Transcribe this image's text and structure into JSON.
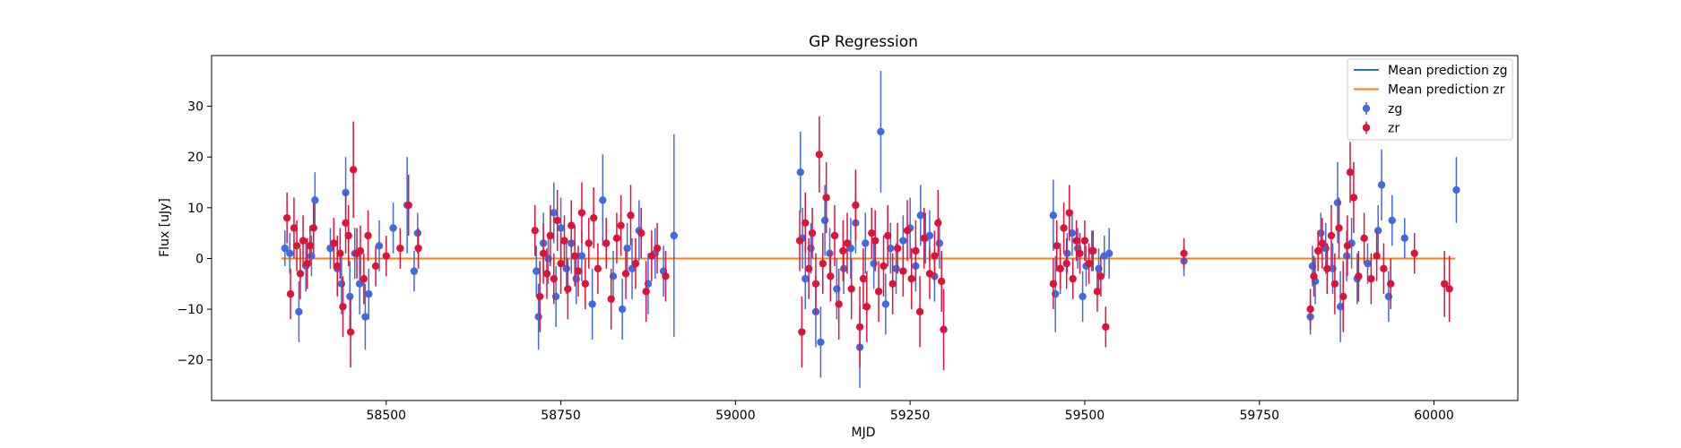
{
  "chart_data": {
    "type": "scatter",
    "title": "GP Regression",
    "xlabel": "MJD",
    "ylabel": "Flux [uJy]",
    "xlim": [
      58250,
      60120
    ],
    "ylim": [
      -28,
      40
    ],
    "xticks": [
      58500,
      58750,
      59000,
      59250,
      59500,
      59750,
      60000
    ],
    "yticks": [
      -20,
      -10,
      0,
      10,
      20,
      30
    ],
    "grid": false,
    "legend_position": "top-right",
    "lines": [
      {
        "name": "Mean prediction zg",
        "color": "#1f77b4",
        "x": [
          58350,
          60030
        ],
        "y": [
          0,
          0
        ]
      },
      {
        "name": "Mean prediction zr",
        "color": "#ff7f0e",
        "x": [
          58350,
          60030
        ],
        "y": [
          0,
          0
        ]
      }
    ],
    "series": [
      {
        "name": "zg",
        "color": "#4169e1",
        "points": [
          [
            58355,
            2.0,
            3.5
          ],
          [
            58362,
            1.0,
            4.0
          ],
          [
            58375,
            -10.5,
            6.0
          ],
          [
            58385,
            -1.5,
            5.0
          ],
          [
            58393,
            0.5,
            4.0
          ],
          [
            58398,
            11.5,
            5.5
          ],
          [
            58420,
            2.0,
            4.0
          ],
          [
            58430,
            -2.0,
            5.0
          ],
          [
            58436,
            -5.0,
            6.0
          ],
          [
            58442,
            13.0,
            7.0
          ],
          [
            58448,
            -7.5,
            7.0
          ],
          [
            58455,
            1.0,
            5.0
          ],
          [
            58462,
            -5.0,
            6.0
          ],
          [
            58470,
            -11.5,
            6.5
          ],
          [
            58475,
            -7.0,
            5.0
          ],
          [
            58490,
            2.5,
            5.0
          ],
          [
            58510,
            6.0,
            5.0
          ],
          [
            58530,
            10.5,
            9.5
          ],
          [
            58540,
            -2.5,
            4.0
          ],
          [
            58545,
            5.0,
            4.0
          ],
          [
            58715,
            -2.5,
            5.0
          ],
          [
            58718,
            -11.5,
            6.5
          ],
          [
            58725,
            3.0,
            6.0
          ],
          [
            58732,
            0.0,
            5.0
          ],
          [
            58740,
            9.0,
            6.0
          ],
          [
            58743,
            -7.5,
            6.0
          ],
          [
            58750,
            6.0,
            6.0
          ],
          [
            58758,
            -2.0,
            5.0
          ],
          [
            58765,
            3.0,
            6.0
          ],
          [
            58772,
            -4.0,
            5.0
          ],
          [
            58780,
            0.5,
            5.0
          ],
          [
            58795,
            -9.0,
            7.0
          ],
          [
            58810,
            11.5,
            9.0
          ],
          [
            58825,
            -3.5,
            5.0
          ],
          [
            58838,
            -10.0,
            6.0
          ],
          [
            58845,
            2.0,
            5.0
          ],
          [
            58852,
            -2.0,
            6.0
          ],
          [
            58862,
            5.5,
            6.0
          ],
          [
            58875,
            -5.0,
            6.0
          ],
          [
            58885,
            1.0,
            5.0
          ],
          [
            58897,
            -2.5,
            5.0
          ],
          [
            58912,
            4.5,
            20.0
          ],
          [
            59093,
            17.0,
            8.0
          ],
          [
            59096,
            4.0,
            6.0
          ],
          [
            59100,
            -4.0,
            6.0
          ],
          [
            59108,
            2.0,
            5.0
          ],
          [
            59115,
            -10.5,
            7.0
          ],
          [
            59122,
            -16.5,
            7.0
          ],
          [
            59128,
            7.5,
            7.0
          ],
          [
            59135,
            1.0,
            5.0
          ],
          [
            59145,
            -6.0,
            6.0
          ],
          [
            59155,
            -2.0,
            5.0
          ],
          [
            59165,
            2.0,
            6.0
          ],
          [
            59172,
            7.0,
            6.0
          ],
          [
            59178,
            -17.5,
            8.0
          ],
          [
            59186,
            3.0,
            6.0
          ],
          [
            59198,
            -1.0,
            5.0
          ],
          [
            59208,
            25.0,
            12.0
          ],
          [
            59215,
            -9.0,
            6.0
          ],
          [
            59222,
            2.0,
            5.0
          ],
          [
            59230,
            -2.0,
            5.0
          ],
          [
            59240,
            3.5,
            5.0
          ],
          [
            59250,
            6.0,
            6.0
          ],
          [
            59258,
            -1.5,
            5.0
          ],
          [
            59265,
            8.5,
            6.0
          ],
          [
            59272,
            4.0,
            5.0
          ],
          [
            59278,
            4.5,
            5.0
          ],
          [
            59285,
            -3.5,
            5.0
          ],
          [
            59292,
            3.0,
            5.0
          ],
          [
            59455,
            8.5,
            7.0
          ],
          [
            59458,
            -7.0,
            7.5
          ],
          [
            59465,
            -2.0,
            5.0
          ],
          [
            59475,
            1.0,
            4.0
          ],
          [
            59482,
            5.0,
            4.5
          ],
          [
            59490,
            2.0,
            4.0
          ],
          [
            59497,
            -7.5,
            5.0
          ],
          [
            59502,
            -1.5,
            4.0
          ],
          [
            59510,
            1.5,
            4.0
          ],
          [
            59520,
            -2.0,
            4.0
          ],
          [
            59528,
            0.5,
            4.0
          ],
          [
            59535,
            1.0,
            5.0
          ],
          [
            59642,
            -0.5,
            3.0
          ],
          [
            59823,
            -11.5,
            3.5
          ],
          [
            59826,
            -1.5,
            4.0
          ],
          [
            59830,
            -4.5,
            4.5
          ],
          [
            59838,
            5.0,
            4.0
          ],
          [
            59845,
            2.0,
            5.0
          ],
          [
            59855,
            -2.0,
            5.0
          ],
          [
            59862,
            11.0,
            8.0
          ],
          [
            59866,
            -9.5,
            7.0
          ],
          [
            59875,
            0.5,
            5.0
          ],
          [
            59882,
            3.0,
            5.0
          ],
          [
            59890,
            -4.0,
            5.0
          ],
          [
            59905,
            -1.0,
            4.0
          ],
          [
            59920,
            5.5,
            5.0
          ],
          [
            59925,
            14.5,
            7.0
          ],
          [
            59935,
            -7.5,
            5.0
          ],
          [
            59940,
            7.5,
            5.0
          ],
          [
            59958,
            4.0,
            4.0
          ],
          [
            60032,
            13.5,
            6.5
          ]
        ]
      },
      {
        "name": "zr",
        "color": "#dc143c",
        "points": [
          [
            58358,
            8.0,
            5.0
          ],
          [
            58363,
            -7.0,
            5.0
          ],
          [
            58368,
            6.0,
            6.0
          ],
          [
            58372,
            2.5,
            5.0
          ],
          [
            58377,
            -3.0,
            5.0
          ],
          [
            58381,
            3.5,
            5.0
          ],
          [
            58387,
            -1.0,
            5.0
          ],
          [
            58391,
            2.5,
            4.0
          ],
          [
            58396,
            6.0,
            5.0
          ],
          [
            58425,
            3.0,
            5.0
          ],
          [
            58430,
            -1.5,
            6.0
          ],
          [
            58434,
            1.0,
            5.0
          ],
          [
            58438,
            -9.5,
            6.0
          ],
          [
            58442,
            7.0,
            6.0
          ],
          [
            58446,
            4.5,
            6.0
          ],
          [
            58449,
            -14.5,
            7.0
          ],
          [
            58453,
            17.5,
            9.5
          ],
          [
            58458,
            1.0,
            5.0
          ],
          [
            58463,
            1.5,
            5.0
          ],
          [
            58468,
            -4.0,
            5.0
          ],
          [
            58474,
            4.5,
            5.0
          ],
          [
            58485,
            -1.5,
            4.0
          ],
          [
            58500,
            0.5,
            4.0
          ],
          [
            58520,
            2.0,
            4.0
          ],
          [
            58532,
            10.5,
            6.0
          ],
          [
            58546,
            2.0,
            4.0
          ],
          [
            58713,
            5.5,
            5.0
          ],
          [
            58720,
            -7.5,
            7.0
          ],
          [
            58725,
            1.0,
            6.0
          ],
          [
            58730,
            -3.0,
            5.0
          ],
          [
            58735,
            4.5,
            6.0
          ],
          [
            58740,
            -4.0,
            5.0
          ],
          [
            58745,
            7.5,
            6.0
          ],
          [
            58750,
            -1.0,
            6.0
          ],
          [
            58755,
            3.5,
            5.0
          ],
          [
            58760,
            -6.0,
            6.0
          ],
          [
            58765,
            6.5,
            5.0
          ],
          [
            58770,
            0.5,
            6.0
          ],
          [
            58775,
            -2.5,
            5.0
          ],
          [
            58780,
            9.0,
            6.0
          ],
          [
            58785,
            -5.0,
            5.0
          ],
          [
            58790,
            3.0,
            5.0
          ],
          [
            58797,
            8.0,
            6.0
          ],
          [
            58803,
            -2.0,
            5.0
          ],
          [
            58815,
            3.0,
            5.0
          ],
          [
            58822,
            -8.0,
            6.0
          ],
          [
            58830,
            4.0,
            5.0
          ],
          [
            58836,
            6.5,
            6.0
          ],
          [
            58843,
            -3.0,
            5.0
          ],
          [
            58850,
            8.5,
            6.0
          ],
          [
            58857,
            -1.0,
            5.0
          ],
          [
            58865,
            5.0,
            5.0
          ],
          [
            58872,
            -6.5,
            6.0
          ],
          [
            58880,
            0.5,
            5.0
          ],
          [
            58888,
            2.0,
            5.0
          ],
          [
            58900,
            -3.5,
            5.0
          ],
          [
            59092,
            3.5,
            6.0
          ],
          [
            59095,
            -14.5,
            7.0
          ],
          [
            59100,
            7.0,
            6.0
          ],
          [
            59105,
            -2.0,
            6.0
          ],
          [
            59110,
            5.0,
            5.0
          ],
          [
            59115,
            -5.0,
            6.0
          ],
          [
            59120,
            20.5,
            7.5
          ],
          [
            59125,
            -1.0,
            6.0
          ],
          [
            59130,
            12.0,
            7.0
          ],
          [
            59136,
            -3.5,
            5.0
          ],
          [
            59142,
            4.5,
            6.0
          ],
          [
            59148,
            -9.0,
            7.0
          ],
          [
            59154,
            1.5,
            6.0
          ],
          [
            59160,
            3.0,
            6.0
          ],
          [
            59166,
            -6.0,
            6.0
          ],
          [
            59172,
            10.5,
            7.0
          ],
          [
            59178,
            -13.5,
            8.0
          ],
          [
            59183,
            -4.0,
            6.0
          ],
          [
            59188,
            -9.5,
            7.0
          ],
          [
            59195,
            5.0,
            5.0
          ],
          [
            59200,
            3.5,
            6.0
          ],
          [
            59205,
            -6.5,
            6.0
          ],
          [
            59212,
            -1.5,
            6.0
          ],
          [
            59218,
            4.5,
            6.0
          ],
          [
            59225,
            -5.0,
            6.0
          ],
          [
            59232,
            2.0,
            5.0
          ],
          [
            59240,
            -2.5,
            5.0
          ],
          [
            59246,
            5.5,
            6.0
          ],
          [
            59252,
            -4.0,
            6.0
          ],
          [
            59258,
            1.5,
            6.0
          ],
          [
            59264,
            -10.5,
            7.0
          ],
          [
            59270,
            4.0,
            6.0
          ],
          [
            59278,
            -3.0,
            5.0
          ],
          [
            59285,
            0.5,
            5.0
          ],
          [
            59290,
            7.0,
            6.5
          ],
          [
            59295,
            -4.5,
            6.0
          ],
          [
            59298,
            -14.0,
            8.0
          ],
          [
            59455,
            -5.0,
            5.0
          ],
          [
            59460,
            2.5,
            5.0
          ],
          [
            59465,
            -2.0,
            4.0
          ],
          [
            59470,
            6.0,
            5.0
          ],
          [
            59474,
            -1.0,
            5.0
          ],
          [
            59478,
            9.0,
            5.5
          ],
          [
            59483,
            -4.0,
            4.0
          ],
          [
            59488,
            3.5,
            4.0
          ],
          [
            59493,
            1.0,
            4.0
          ],
          [
            59500,
            3.5,
            4.0
          ],
          [
            59506,
            -1.0,
            4.0
          ],
          [
            59512,
            1.5,
            4.0
          ],
          [
            59518,
            -6.5,
            4.0
          ],
          [
            59523,
            -3.5,
            4.0
          ],
          [
            59530,
            -13.5,
            4.0
          ],
          [
            59642,
            1.0,
            3.0
          ],
          [
            59823,
            -10.0,
            4.0
          ],
          [
            59828,
            -3.5,
            4.0
          ],
          [
            59834,
            1.5,
            4.0
          ],
          [
            59840,
            3.0,
            5.0
          ],
          [
            59847,
            -2.0,
            5.0
          ],
          [
            59853,
            4.5,
            6.0
          ],
          [
            59858,
            -5.0,
            6.0
          ],
          [
            59864,
            6.0,
            6.0
          ],
          [
            59870,
            -7.5,
            7.0
          ],
          [
            59876,
            2.5,
            6.0
          ],
          [
            59880,
            17.0,
            6.0
          ],
          [
            59885,
            12.0,
            7.0
          ],
          [
            59892,
            -3.5,
            5.0
          ],
          [
            59900,
            4.0,
            5.0
          ],
          [
            59910,
            -4.0,
            5.0
          ],
          [
            59918,
            0.5,
            5.0
          ],
          [
            59928,
            -2.0,
            5.0
          ],
          [
            59938,
            -5.0,
            5.0
          ],
          [
            59972,
            1.0,
            4.0
          ],
          [
            60015,
            -5.0,
            6.5
          ],
          [
            60022,
            -6.0,
            6.5
          ]
        ]
      }
    ]
  }
}
